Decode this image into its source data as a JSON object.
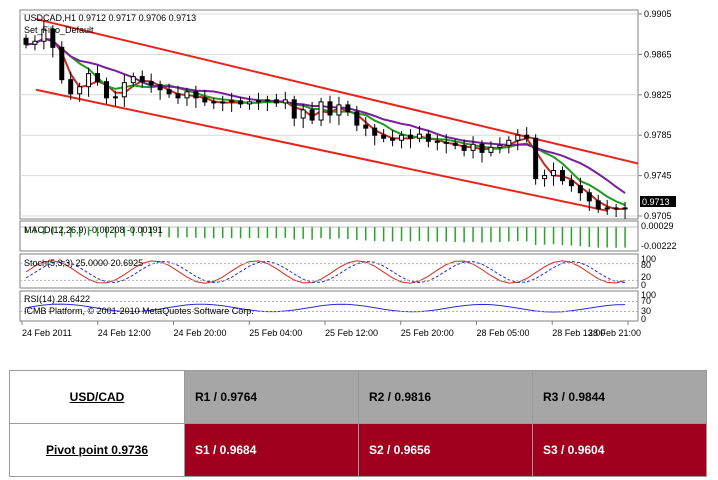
{
  "chart": {
    "header": "USDCAD,H1  0.9712 0.9717 0.9706 0.9713",
    "subheader": "Set_Fibo_Default",
    "price_labels": [
      "0.9905",
      "0.9865",
      "0.9825",
      "0.9785",
      "0.9745",
      "0.9705"
    ],
    "current_price": "0.9713",
    "macd_label": "MACD(12,26,9) -0.00208 -0.00191",
    "macd_axis": [
      "0.00029",
      "-0.00222"
    ],
    "stoch_label": "Stoch(5,3,3) 25.0000 20.6925",
    "stoch_axis": [
      "100",
      "80",
      "20",
      "0"
    ],
    "rsi_label": "RSI(14) 28.6422",
    "copyright": "ICMB Platform, © 2001-2010 MetaQuotes Software Corp.",
    "rsi_axis": [
      "100",
      "70",
      "30",
      "0"
    ],
    "time_labels": [
      "24 Feb 2011",
      "24 Feb 12:00",
      "24 Feb 20:00",
      "25 Feb 04:00",
      "25 Feb 12:00",
      "25 Feb 20:00",
      "28 Feb 05:00",
      "28 Feb 13:00",
      "28 Feb 21:00"
    ],
    "colors": {
      "channel": "#e8231b",
      "ma_fast": "#1e9c1e",
      "ma_mid": "#c42a1e",
      "ma_slow": "#7a1f9a",
      "macd_bar": "#28a428",
      "stoch_main": "#d42a20",
      "stoch_signal": "#2a2ad4",
      "rsi": "#2a2ad4"
    }
  },
  "chart_data": {
    "type": "candlestick",
    "symbol": "USDCAD",
    "timeframe": "H1",
    "ohlc_last": {
      "open": 0.9712,
      "high": 0.9717,
      "low": 0.9706,
      "close": 0.9713
    },
    "ylim": [
      0.9705,
      0.9905
    ],
    "closes": [
      0.9875,
      0.9878,
      0.989,
      0.9872,
      0.984,
      0.9826,
      0.9833,
      0.9846,
      0.9838,
      0.9822,
      0.9823,
      0.9837,
      0.9843,
      0.9838,
      0.9835,
      0.983,
      0.9826,
      0.9822,
      0.9828,
      0.9822,
      0.9818,
      0.9817,
      0.9818,
      0.9819,
      0.9816,
      0.9818,
      0.9819,
      0.982,
      0.9817,
      0.982,
      0.9802,
      0.981,
      0.98,
      0.9818,
      0.9805,
      0.9815,
      0.9808,
      0.9795,
      0.9792,
      0.9785,
      0.9782,
      0.978,
      0.9785,
      0.9782,
      0.9786,
      0.9779,
      0.9778,
      0.9777,
      0.9775,
      0.977,
      0.9776,
      0.9768,
      0.9773,
      0.9775,
      0.978,
      0.9785,
      0.9782,
      0.9742,
      0.9745,
      0.975,
      0.974,
      0.9735,
      0.9728,
      0.972,
      0.9712,
      0.9713,
      0.9712,
      0.9713
    ],
    "pivot": {
      "symbol": "USD/CAD",
      "pivot": 0.9736,
      "R1": 0.9764,
      "R2": 0.9816,
      "R3": 0.9844,
      "S1": 0.9684,
      "S2": 0.9656,
      "S3": 0.9604
    }
  },
  "table": {
    "pair": "USD/CAD",
    "pivot": "Pivot point 0.9736",
    "r1": "R1 / 0.9764",
    "r2": "R2 / 0.9816",
    "r3": "R3 / 0.9844",
    "s1": "S1 / 0.9684",
    "s2": "S2 / 0.9656",
    "s3": "S3 / 0.9604"
  }
}
